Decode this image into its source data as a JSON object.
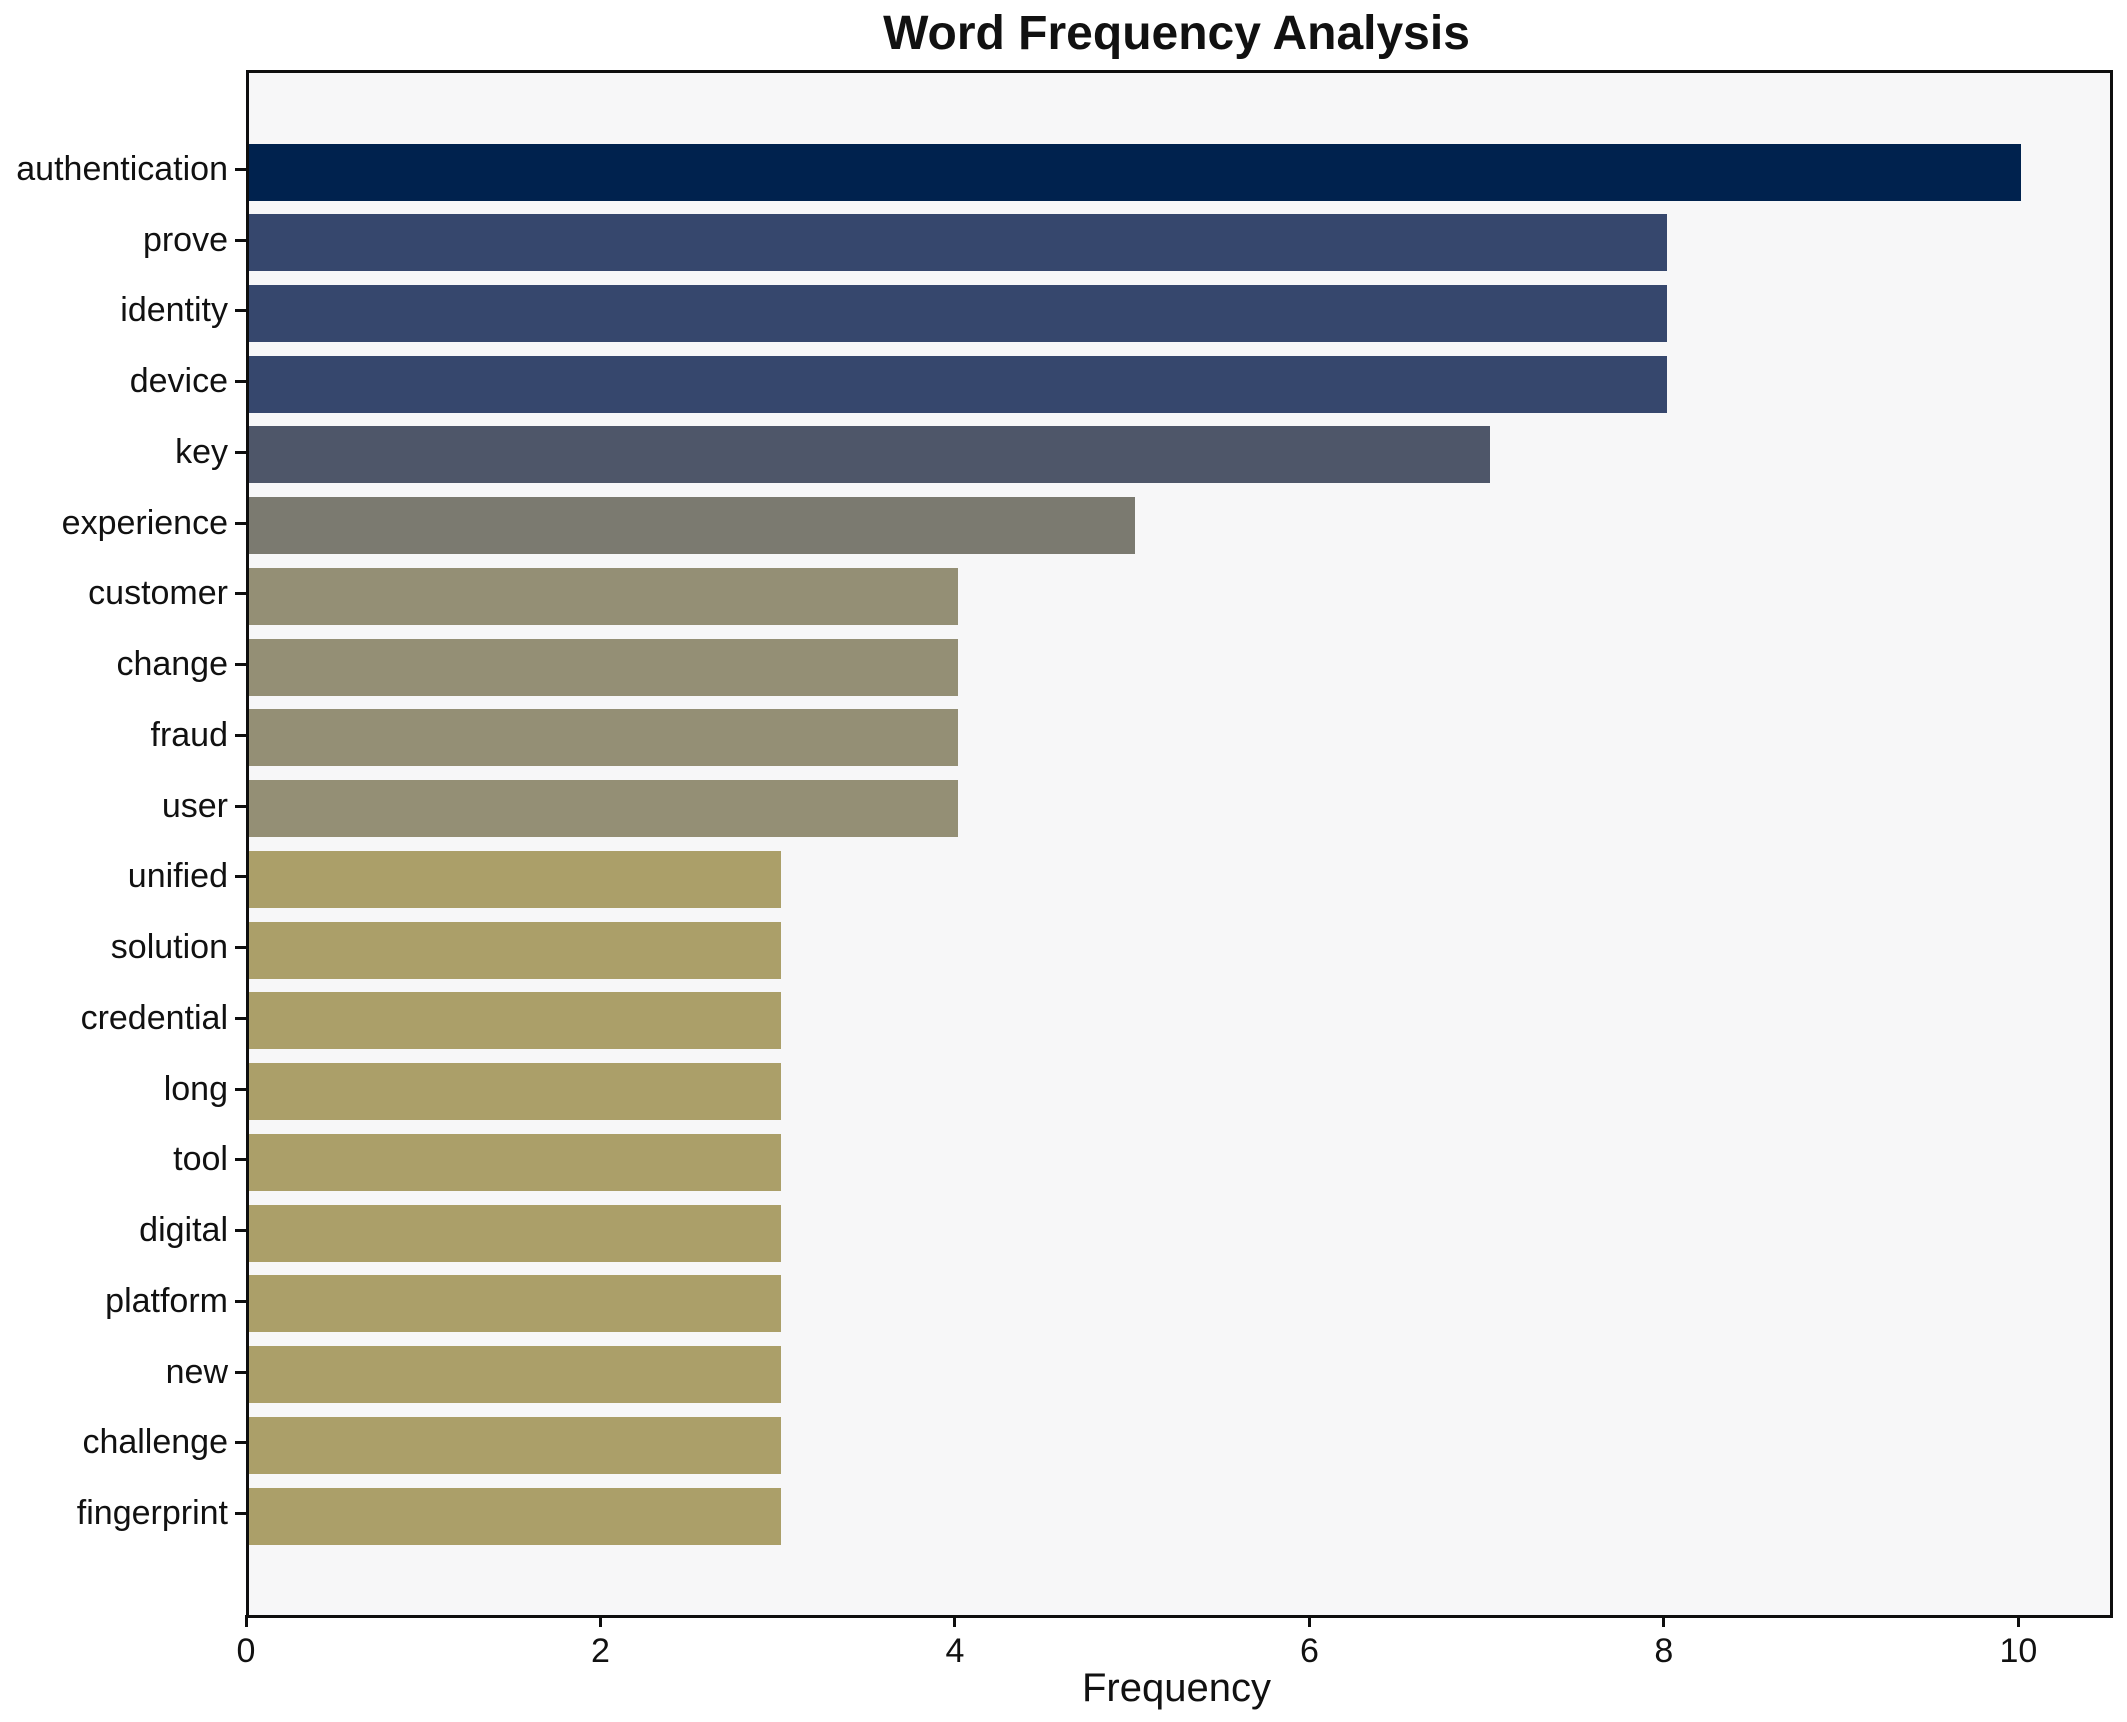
{
  "chart_data": {
    "type": "bar",
    "orientation": "horizontal",
    "title": "Word Frequency Analysis",
    "xlabel": "Frequency",
    "ylabel": "",
    "categories": [
      "authentication",
      "prove",
      "identity",
      "device",
      "key",
      "experience",
      "customer",
      "change",
      "fraud",
      "user",
      "unified",
      "solution",
      "credential",
      "long",
      "tool",
      "digital",
      "platform",
      "new",
      "challenge",
      "fingerprint"
    ],
    "values": [
      10,
      8,
      8,
      8,
      7,
      5,
      4,
      4,
      4,
      4,
      3,
      3,
      3,
      3,
      3,
      3,
      3,
      3,
      3,
      3
    ],
    "bar_colors": [
      "#00224e",
      "#36476d",
      "#36476d",
      "#36476d",
      "#4e5669",
      "#7b7a70",
      "#948f75",
      "#948f75",
      "#948f75",
      "#948f75",
      "#ab9f69",
      "#ab9f69",
      "#ab9f69",
      "#ab9f69",
      "#ab9f69",
      "#ab9f69",
      "#ab9f69",
      "#ab9f69",
      "#ab9f69",
      "#ab9f69"
    ],
    "x_ticks": [
      0,
      2,
      4,
      6,
      8,
      10
    ],
    "xlim": [
      0,
      10.5
    ],
    "grid": false,
    "legend": null,
    "plot_bg": "#f7f7f8",
    "text_color": "#111111"
  }
}
